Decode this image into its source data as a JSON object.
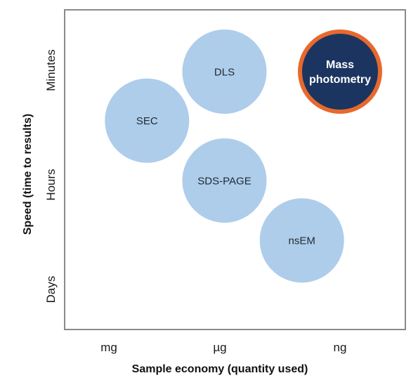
{
  "chart_data": {
    "type": "scatter",
    "xlabel": "Sample economy (quantity used)",
    "ylabel": "Speed (time to results)",
    "x_categories": [
      "mg",
      "µg",
      "ng"
    ],
    "y_categories": [
      "Days",
      "Hours",
      "Minutes"
    ],
    "grid": false,
    "points": [
      {
        "label": "DLS",
        "x": 1.0,
        "y": 2.0,
        "highlight": false
      },
      {
        "label": "Mass photometry",
        "label_lines": [
          "Mass",
          "photometry"
        ],
        "x": 2.0,
        "y": 2.0,
        "highlight": true
      },
      {
        "label": "SEC",
        "x": 0.33,
        "y": 1.55,
        "highlight": false
      },
      {
        "label": "SDS-PAGE",
        "x": 1.0,
        "y": 1.0,
        "highlight": false
      },
      {
        "label": "nsEM",
        "x": 1.67,
        "y": 0.45,
        "highlight": false
      }
    ],
    "colors": {
      "bubble": "#aecdea",
      "highlight_fill": "#1b3560",
      "highlight_stroke": "#e8692d",
      "frame": "#8a8a8a"
    }
  }
}
